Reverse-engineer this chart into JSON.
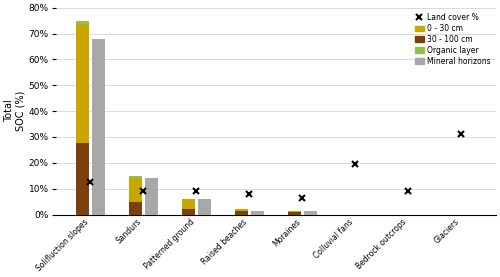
{
  "categories": [
    "Solifluction slopes",
    "Sandurs",
    "Patterned ground",
    "Raised beaches",
    "Moraines",
    "Colluvial fans",
    "Bedrock outcrops",
    "Glaciers"
  ],
  "bar_30_100": [
    27.5,
    5.0,
    2.0,
    1.5,
    1.0,
    0.0,
    0.0,
    0.0
  ],
  "bar_0_30": [
    46.0,
    9.0,
    4.0,
    0.5,
    0.5,
    0.0,
    0.0,
    0.0
  ],
  "bar_organic": [
    1.5,
    1.0,
    0.0,
    0.0,
    0.0,
    0.0,
    0.0,
    0.0
  ],
  "bar_mineral": [
    68.0,
    14.0,
    6.0,
    1.5,
    1.5,
    0.0,
    0.0,
    0.0
  ],
  "land_cover": [
    12.5,
    9.0,
    9.0,
    8.0,
    6.5,
    19.5,
    9.0,
    31.0
  ],
  "color_30_100": "#7B4010",
  "color_0_30": "#C8A800",
  "color_organic": "#90C050",
  "color_mineral": "#A8A8A8",
  "ylabel": "Total\nSOC (%)",
  "ylim": [
    0,
    80
  ],
  "yticks": [
    0,
    10,
    20,
    30,
    40,
    50,
    60,
    70,
    80
  ],
  "ytick_labels": [
    "0%",
    "10%",
    "20%",
    "30%",
    "40%",
    "50%",
    "60%",
    "70%",
    "80%"
  ],
  "bar_width": 0.25,
  "bar_gap": 0.05
}
